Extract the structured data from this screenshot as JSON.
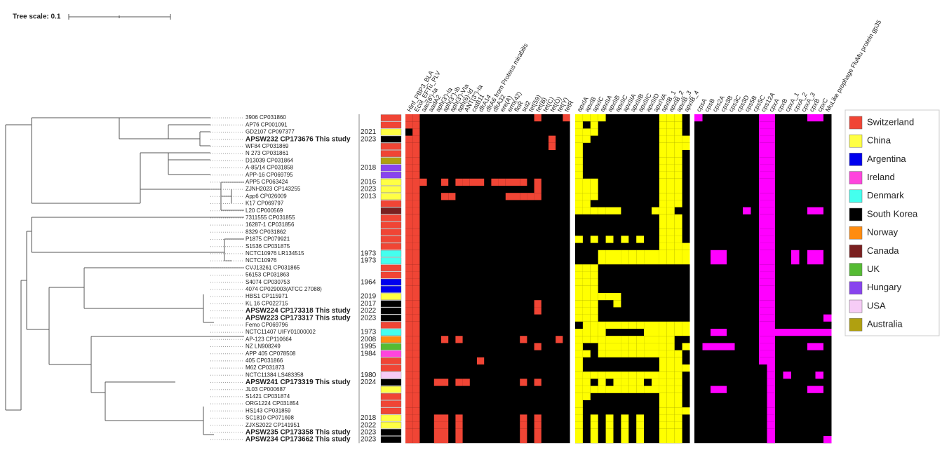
{
  "tree_scale": "Tree scale: 0.1",
  "panels": [
    {
      "name": "resistance",
      "color": "#f04535",
      "genes": [
        "Hinf_PBP3_BLA",
        "Ecol_EFTu_PLV",
        "aac(6')-Ia",
        "aadA2",
        "aph(3')-Ia",
        "aph(3'')-Ib",
        "aph(3')-VIa",
        "aph(6)-Id",
        "ANT(3'')-Ia",
        "catB11",
        "dfrA14",
        "dfrA6 from Proteus mirabilis",
        "dfrA32",
        "ere(A)",
        "erm(42)",
        "floR",
        "sul2",
        "tet(59)",
        "tet(B)",
        "tet(C)",
        "tet(O)",
        "tet(Y)",
        "tetR"
      ]
    },
    {
      "name": "toxins",
      "color": "#ffff00",
      "genes": [
        "apxIA",
        "apxIB",
        "apxIC",
        "apxIIA",
        "apxIIB",
        "apxIIC",
        "apxIIIA",
        "apxIIIB",
        "apxIIIC",
        "apxIIID",
        "apxIVA",
        "apxIB_1",
        "apxIB_2",
        "apxIB_3",
        "apxIB_4"
      ]
    },
    {
      "name": "capsule",
      "color": "#ff00ff",
      "genes": [
        "cpsA",
        "cpsB",
        "cps2A",
        "cps3B",
        "cps3C",
        "cps3D",
        "cps5B",
        "cps5C",
        "cps12A",
        "cpxA",
        "cpxB",
        "cpxA_1",
        "cpxA_2",
        "cpxA_3",
        "cpxB",
        "cpxC",
        "MuLike prophage FluMu protein gp35"
      ]
    }
  ],
  "legend": [
    {
      "label": "Switzerland",
      "color": "#f04535"
    },
    {
      "label": "China",
      "color": "#ffff44"
    },
    {
      "label": "Argentina",
      "color": "#0000ee"
    },
    {
      "label": "Ireland",
      "color": "#ff44dd"
    },
    {
      "label": "Denmark",
      "color": "#44ffee"
    },
    {
      "label": "South Korea",
      "color": "#000000"
    },
    {
      "label": "Norway",
      "color": "#ff8c10"
    },
    {
      "label": "Canada",
      "color": "#7a2020"
    },
    {
      "label": "UK",
      "color": "#55bb33"
    },
    {
      "label": "Hungary",
      "color": "#8844ee"
    },
    {
      "label": "USA",
      "color": "#f6ccf6"
    },
    {
      "label": "Australia",
      "color": "#b0a010"
    }
  ],
  "rows": [
    {
      "label": "3906 CP031860",
      "country": 0,
      "genes": [
        [
          0,
          1,
          18,
          22
        ],
        [
          0,
          1,
          2,
          3,
          11,
          12,
          13
        ],
        [
          0,
          8,
          9,
          14,
          15
        ]
      ]
    },
    {
      "label": "AP76 CP001091",
      "country": 0,
      "genes": [
        [
          0,
          1
        ],
        [
          0,
          2,
          11,
          12,
          13
        ],
        [
          8,
          9
        ]
      ]
    },
    {
      "label": "GD2107 CP097377",
      "year": "2021",
      "country": 1,
      "genes": [
        [
          1
        ],
        [
          0,
          1,
          2,
          11,
          12,
          13
        ],
        [
          8,
          9
        ]
      ]
    },
    {
      "label": "APSW232 CP173676 This study",
      "year": "2023",
      "country": 5,
      "highlight": true,
      "genes": [
        [
          0,
          1,
          20
        ],
        [
          0,
          1,
          11,
          12,
          13,
          14
        ],
        [
          8,
          9
        ]
      ]
    },
    {
      "label": "WF84 CP031869",
      "country": 0,
      "genes": [
        [
          0,
          1,
          20
        ],
        [
          0,
          11,
          12,
          13,
          14
        ],
        [
          8,
          9
        ]
      ]
    },
    {
      "label": "N 273 CP031861",
      "country": 0,
      "genes": [
        [
          0,
          1
        ],
        [
          0,
          11,
          12,
          13
        ],
        [
          8,
          9
        ]
      ]
    },
    {
      "label": "D13039 CP031864",
      "country": 11,
      "genes": [
        [
          0,
          1
        ],
        [
          0,
          11,
          12,
          13
        ],
        [
          8,
          9
        ]
      ]
    },
    {
      "label": "A-85/14 CP031858",
      "year": "2018",
      "country": 9,
      "genes": [
        [
          0,
          1
        ],
        [
          0,
          11,
          12,
          13
        ],
        [
          8,
          9
        ]
      ]
    },
    {
      "label": "APP-16 CP069795",
      "country": 9,
      "genes": [
        [
          0,
          1
        ],
        [
          0,
          11,
          12,
          13
        ],
        [
          8,
          9
        ]
      ]
    },
    {
      "label": "APP5 CP063424",
      "year": "2016",
      "country": 1,
      "genes": [
        [
          0,
          1,
          2,
          5,
          7,
          8,
          9,
          10,
          12,
          13,
          14,
          15,
          16,
          18
        ],
        [
          0,
          1,
          2,
          11,
          12,
          13
        ],
        [
          8,
          9
        ]
      ]
    },
    {
      "label": "ZJNH2023 CP143255",
      "year": "2023",
      "country": 1,
      "genes": [
        [
          0,
          1,
          18
        ],
        [
          0,
          1,
          2,
          11,
          12,
          13
        ],
        [
          8,
          9
        ]
      ]
    },
    {
      "label": "App6 CP026009",
      "year": "2013",
      "country": 1,
      "genes": [
        [
          0,
          1,
          5,
          6,
          14,
          15,
          16,
          17,
          18
        ],
        [
          0,
          1,
          2,
          11,
          12,
          13
        ],
        [
          8,
          9
        ]
      ]
    },
    {
      "label": "K17 CP069797",
      "country": 0,
      "genes": [
        [
          0,
          1
        ],
        [
          0,
          1,
          11,
          12,
          13
        ],
        [
          8,
          9
        ]
      ]
    },
    {
      "label": "L20 CP000569",
      "country": 7,
      "genes": [
        [
          0,
          1
        ],
        [
          0,
          1,
          2,
          3,
          4,
          5,
          10,
          11,
          12
        ],
        [
          6,
          8,
          9,
          14,
          15
        ]
      ]
    },
    {
      "label": "7311555 CP031855",
      "country": 0,
      "genes": [
        [
          0,
          1
        ],
        [
          11,
          12,
          13
        ],
        [
          8,
          9
        ]
      ]
    },
    {
      "label": "16287-1 CP031856",
      "country": 0,
      "genes": [
        [
          0,
          1
        ],
        [
          11,
          12,
          13
        ],
        [
          8,
          9
        ]
      ]
    },
    {
      "label": "8329 CP031862",
      "country": 0,
      "genes": [
        [
          0,
          1
        ],
        [
          11,
          12,
          13
        ],
        [
          8,
          9
        ]
      ]
    },
    {
      "label": "P1875 CP079921",
      "country": 0,
      "genes": [
        [
          0,
          1
        ],
        [
          0,
          2,
          4,
          6,
          8,
          11,
          12,
          13
        ],
        [
          8,
          9
        ]
      ]
    },
    {
      "label": "S1536 CP031875",
      "country": 0,
      "genes": [
        [
          0,
          1
        ],
        [
          11,
          12,
          13,
          14
        ],
        [
          8,
          9
        ]
      ]
    },
    {
      "label": "NCTC10976 LR134515",
      "year": "1973",
      "country": 4,
      "genes": [
        [
          0,
          1
        ],
        [
          3,
          4,
          5,
          6,
          7,
          8,
          9,
          10,
          11,
          12,
          13,
          14
        ],
        [
          2,
          3,
          8,
          9,
          12,
          14,
          15
        ]
      ]
    },
    {
      "label": "NCTC10976",
      "year": "1973",
      "country": 4,
      "genes": [
        [
          0,
          1
        ],
        [
          3,
          4,
          5,
          6,
          7,
          8,
          9,
          10,
          11,
          12,
          13,
          14
        ],
        [
          2,
          3,
          8,
          9,
          12,
          14,
          15
        ]
      ]
    },
    {
      "label": "CVJ13261 CP031865",
      "country": 0,
      "genes": [
        [
          0,
          1
        ],
        [
          0,
          1,
          2
        ],
        [
          8,
          9
        ]
      ]
    },
    {
      "label": "56153 CP031863",
      "country": 0,
      "genes": [
        [
          0,
          1
        ],
        [
          0,
          1,
          2
        ],
        [
          8,
          9
        ]
      ]
    },
    {
      "label": "S4074 CP030753",
      "year": "1964",
      "country": 2,
      "genes": [
        [
          0,
          1
        ],
        [
          0,
          1,
          2
        ],
        [
          8,
          9
        ]
      ]
    },
    {
      "label": "4074 CP029003(ATCC 27088)",
      "country": 2,
      "genes": [
        [
          0,
          1
        ],
        [
          0,
          1,
          2
        ],
        [
          8,
          9
        ]
      ]
    },
    {
      "label": "HBS1 CP115971",
      "year": "2019",
      "country": 1,
      "genes": [
        [
          0,
          1
        ],
        [
          0,
          1,
          2,
          3,
          4,
          5
        ],
        [
          8,
          9
        ]
      ]
    },
    {
      "label": "KL 16 CP022715",
      "year": "2017",
      "country": 5,
      "genes": [
        [
          0,
          1,
          18
        ],
        [
          0,
          1,
          2,
          5
        ],
        [
          8,
          9
        ]
      ]
    },
    {
      "label": "APSW224 CP173318 This study",
      "year": "2022",
      "country": 5,
      "highlight": true,
      "genes": [
        [
          0,
          1,
          18
        ],
        [
          0,
          1,
          2
        ],
        [
          8,
          9
        ]
      ]
    },
    {
      "label": "APSW223 CP173317 This study",
      "year": "2023",
      "country": 5,
      "highlight": true,
      "genes": [
        [
          0,
          1
        ],
        [
          0,
          1,
          2
        ],
        [
          8,
          9,
          16
        ]
      ]
    },
    {
      "label": "Femo CP069796",
      "country": 0,
      "genes": [
        [
          0,
          1
        ],
        [
          1,
          2,
          3,
          4,
          5,
          6,
          7,
          8,
          9,
          10,
          11,
          12,
          13,
          14
        ],
        [
          8,
          9
        ]
      ]
    },
    {
      "label": "NCTC11407 UIFY01000002",
      "year": "1973",
      "country": 4,
      "genes": [
        [
          0,
          1
        ],
        [
          0,
          1,
          2,
          3,
          9,
          10,
          11,
          12,
          13,
          14
        ],
        [
          2,
          3,
          8,
          9,
          10,
          11,
          12,
          13,
          14,
          15,
          16
        ]
      ]
    },
    {
      "label": "AP-123 CP110664",
      "year": "2008",
      "country": 6,
      "genes": [
        [
          0,
          1,
          5,
          7,
          16,
          21
        ],
        [
          0,
          1,
          2,
          3,
          4,
          5,
          6,
          7,
          8,
          9,
          10,
          11,
          12
        ],
        [
          8,
          9
        ]
      ]
    },
    {
      "label": "NZ LN908249",
      "year": "1995",
      "country": 8,
      "genes": [
        [
          0,
          1,
          18
        ],
        [
          0,
          3,
          4,
          5,
          6,
          7,
          8,
          9,
          10,
          11,
          12,
          14
        ],
        [
          1,
          2,
          3,
          4,
          8,
          9,
          14,
          15
        ]
      ]
    },
    {
      "label": "APP 405 CP078508",
      "year": "1984",
      "country": 3,
      "genes": [
        [
          0,
          1
        ],
        [
          0,
          1,
          3,
          4,
          5,
          6,
          7,
          8,
          9,
          10,
          11,
          12,
          13
        ],
        [
          8,
          9
        ]
      ]
    },
    {
      "label": "405 CP031866",
      "country": 0,
      "genes": [
        [
          0,
          1,
          10
        ],
        [
          0,
          11,
          12,
          13
        ],
        [
          8,
          9
        ]
      ]
    },
    {
      "label": "M62 CP031873",
      "country": 0,
      "genes": [
        [
          0,
          1
        ],
        [
          0,
          11,
          12,
          13,
          14
        ],
        [
          9
        ]
      ]
    },
    {
      "label": "NCTC11384 LS483358",
      "year": "1980",
      "country": 10,
      "genes": [
        [
          0,
          1
        ],
        [
          0,
          1,
          2,
          3,
          4,
          5,
          6,
          7,
          8,
          9,
          10,
          11,
          12,
          13
        ],
        [
          9,
          11,
          15
        ]
      ]
    },
    {
      "label": "APSW241 CP173319 This study",
      "year": "2024",
      "country": 5,
      "highlight": true,
      "genes": [
        [
          0,
          1,
          4,
          5,
          7,
          8,
          16,
          18
        ],
        [
          0,
          1,
          3,
          5,
          6,
          7,
          8,
          10,
          11,
          12,
          13
        ],
        [
          9
        ]
      ]
    },
    {
      "label": "JL03 CP000687",
      "country": 1,
      "genes": [
        [
          0,
          1
        ],
        [
          0,
          1,
          2,
          3,
          4,
          5,
          6,
          7,
          8,
          9,
          10,
          11,
          12,
          13
        ],
        [
          2,
          3,
          9,
          14,
          15
        ]
      ]
    },
    {
      "label": "S1421 CP031874",
      "country": 0,
      "genes": [
        [
          0,
          1
        ],
        [
          0,
          1,
          11,
          12,
          13
        ],
        [
          9
        ]
      ]
    },
    {
      "label": "ORG1224 CP031854",
      "country": 0,
      "genes": [
        [
          0,
          1
        ],
        [
          0,
          11,
          12,
          13
        ],
        [
          9
        ]
      ]
    },
    {
      "label": "HS143 CP031859",
      "country": 0,
      "genes": [
        [
          0,
          1
        ],
        [
          0,
          11,
          12,
          13,
          14
        ],
        [
          9
        ]
      ]
    },
    {
      "label": "SC1810 CP071698",
      "year": "2018",
      "country": 1,
      "genes": [
        [
          0,
          1,
          4,
          5,
          7,
          16,
          18
        ],
        [
          0,
          2,
          4,
          6,
          8,
          11,
          12,
          13
        ],
        [
          9
        ]
      ]
    },
    {
      "label": "ZJXS2022 CP141951",
      "year": "2022",
      "country": 1,
      "genes": [
        [
          0,
          1,
          4,
          5,
          7,
          16,
          18
        ],
        [
          0,
          2,
          4,
          6,
          8,
          11,
          12,
          13
        ],
        [
          9
        ]
      ]
    },
    {
      "label": "APSW235 CP173358 This study",
      "year": "2023",
      "country": 5,
      "highlight": true,
      "genes": [
        [
          0,
          1,
          4,
          5,
          7,
          16,
          18
        ],
        [
          0,
          2,
          4,
          6,
          8,
          11,
          12,
          13
        ],
        [
          9
        ]
      ]
    },
    {
      "label": "APSW234 CP173662 This study",
      "year": "2023",
      "country": 5,
      "highlight": true,
      "genes": [
        [
          0,
          1,
          4,
          5,
          7,
          16,
          18
        ],
        [
          0,
          2,
          4,
          6,
          8,
          11,
          12,
          13
        ],
        [
          9,
          16
        ]
      ]
    }
  ]
}
